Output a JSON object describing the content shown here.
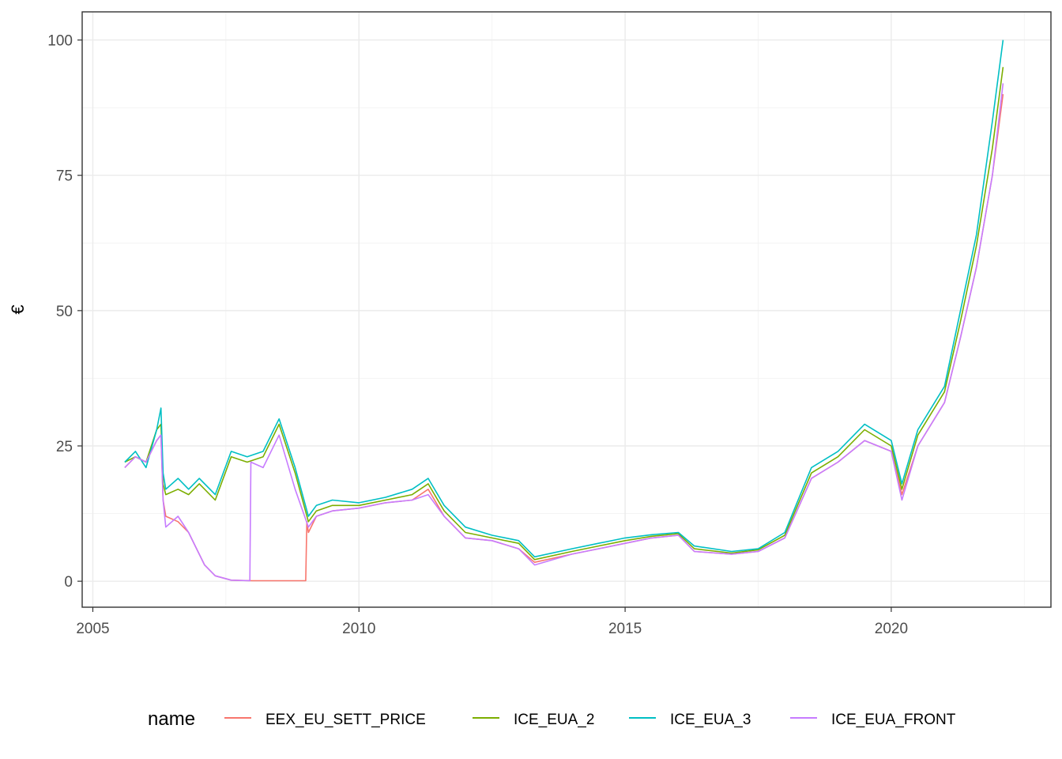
{
  "chart_data": {
    "type": "line",
    "title": "",
    "xlabel": "",
    "ylabel": "€",
    "xlim": [
      2004.8,
      2023.0
    ],
    "ylim": [
      -4.8,
      105.2
    ],
    "x_ticks": [
      2005,
      2010,
      2015,
      2020
    ],
    "x_tick_labels": [
      "2005",
      "2010",
      "2015",
      "2020"
    ],
    "y_ticks": [
      0,
      25,
      50,
      75,
      100
    ],
    "y_tick_labels": [
      "0",
      "25",
      "50",
      "75",
      "100"
    ],
    "grid": true,
    "legend_title": "name",
    "legend_position": "bottom",
    "series": [
      {
        "name": "EEX_EU_SETT_PRICE",
        "color": "#F8766D",
        "x": [
          2005.6,
          2005.8,
          2006.0,
          2006.2,
          2006.28,
          2006.32,
          2006.37,
          2006.6,
          2006.8,
          2006.95,
          2007.1,
          2007.3,
          2007.6,
          2008.0,
          2008.5,
          2009.0,
          2009.02,
          2009.05,
          2009.2,
          2009.5,
          2010.0,
          2010.5,
          2011.0,
          2011.3,
          2011.6,
          2012.0,
          2012.5,
          2013.0,
          2013.3,
          2014.0,
          2014.5,
          2015.0,
          2015.5,
          2016.0,
          2016.3,
          2017.0,
          2017.5,
          2018.0,
          2018.5,
          2019.0,
          2019.5,
          2020.0,
          2020.2,
          2020.5,
          2021.0,
          2021.3,
          2021.6,
          2021.9,
          2022.1
        ],
        "y": [
          21,
          23,
          22,
          26,
          27,
          15,
          12,
          11,
          9,
          6,
          3,
          1,
          0.2,
          0.1,
          0.1,
          0.1,
          11,
          9,
          12,
          13,
          13.5,
          14.5,
          15,
          17,
          12,
          8,
          7.5,
          6,
          3.5,
          5,
          6,
          7,
          8,
          8.5,
          5.5,
          5,
          5.5,
          8,
          19,
          22,
          26,
          24,
          16,
          25,
          33,
          45,
          58,
          75,
          90
        ]
      },
      {
        "name": "ICE_EUA_2",
        "color": "#7CAE00",
        "x": [
          2005.6,
          2005.8,
          2006.0,
          2006.2,
          2006.28,
          2006.32,
          2006.37,
          2006.6,
          2006.8,
          2007.0,
          2007.3,
          2007.6,
          2007.9,
          2008.2,
          2008.5,
          2008.8,
          2009.05,
          2009.2,
          2009.5,
          2010.0,
          2010.5,
          2011.0,
          2011.3,
          2011.6,
          2012.0,
          2012.5,
          2013.0,
          2013.3,
          2014.0,
          2014.5,
          2015.0,
          2015.5,
          2016.0,
          2016.3,
          2017.0,
          2017.5,
          2018.0,
          2018.5,
          2019.0,
          2019.5,
          2020.0,
          2020.2,
          2020.5,
          2021.0,
          2021.3,
          2021.6,
          2021.9,
          2022.1
        ],
        "y": [
          22,
          23,
          22,
          28,
          29,
          18,
          16,
          17,
          16,
          18,
          15,
          23,
          22,
          23,
          29,
          20,
          11,
          13,
          14,
          14,
          15,
          16,
          18,
          13,
          9,
          8,
          7,
          4,
          5.5,
          6.5,
          7.5,
          8.3,
          8.8,
          6,
          5.2,
          5.8,
          8.5,
          20,
          23,
          28,
          25,
          17,
          27,
          35,
          48,
          62,
          80,
          95
        ]
      },
      {
        "name": "ICE_EUA_3",
        "color": "#00BFC4",
        "x": [
          2005.6,
          2005.8,
          2006.0,
          2006.2,
          2006.28,
          2006.32,
          2006.37,
          2006.6,
          2006.8,
          2007.0,
          2007.3,
          2007.6,
          2007.9,
          2008.2,
          2008.5,
          2008.8,
          2009.05,
          2009.2,
          2009.5,
          2010.0,
          2010.5,
          2011.0,
          2011.3,
          2011.6,
          2012.0,
          2012.5,
          2013.0,
          2013.3,
          2014.0,
          2014.5,
          2015.0,
          2015.5,
          2016.0,
          2016.3,
          2017.0,
          2017.5,
          2018.0,
          2018.5,
          2019.0,
          2019.5,
          2020.0,
          2020.2,
          2020.5,
          2021.0,
          2021.3,
          2021.6,
          2021.9,
          2022.1
        ],
        "y": [
          22,
          24,
          21,
          28,
          32,
          20,
          17,
          19,
          17,
          19,
          16,
          24,
          23,
          24,
          30,
          21,
          12,
          14,
          15,
          14.5,
          15.5,
          17,
          19,
          14,
          10,
          8.5,
          7.5,
          4.5,
          6,
          7,
          8,
          8.6,
          9,
          6.5,
          5.5,
          6,
          9,
          21,
          24,
          29,
          26,
          18,
          28,
          36,
          50,
          64,
          85,
          100
        ]
      },
      {
        "name": "ICE_EUA_FRONT",
        "color": "#C77CFF",
        "x": [
          2005.6,
          2005.8,
          2006.0,
          2006.2,
          2006.28,
          2006.32,
          2006.37,
          2006.6,
          2006.8,
          2006.95,
          2007.1,
          2007.3,
          2007.6,
          2007.95,
          2007.97,
          2008.2,
          2008.5,
          2008.8,
          2009.05,
          2009.2,
          2009.5,
          2010.0,
          2010.5,
          2011.0,
          2011.3,
          2011.6,
          2012.0,
          2012.5,
          2013.0,
          2013.3,
          2014.0,
          2014.5,
          2015.0,
          2015.5,
          2016.0,
          2016.3,
          2017.0,
          2017.5,
          2018.0,
          2018.5,
          2019.0,
          2019.5,
          2020.0,
          2020.2,
          2020.5,
          2021.0,
          2021.3,
          2021.6,
          2021.9,
          2022.1
        ],
        "y": [
          21,
          23,
          22,
          26,
          27,
          15,
          10,
          12,
          9,
          6,
          3,
          1,
          0.2,
          0.1,
          22,
          21,
          27,
          17,
          10,
          12,
          13,
          13.5,
          14.5,
          15,
          16,
          12,
          8,
          7.5,
          6,
          3,
          5,
          6,
          7,
          8,
          8.5,
          5.5,
          5,
          5.5,
          8,
          19,
          22,
          26,
          24,
          15,
          25,
          33,
          45,
          58,
          75,
          92
        ]
      }
    ]
  }
}
